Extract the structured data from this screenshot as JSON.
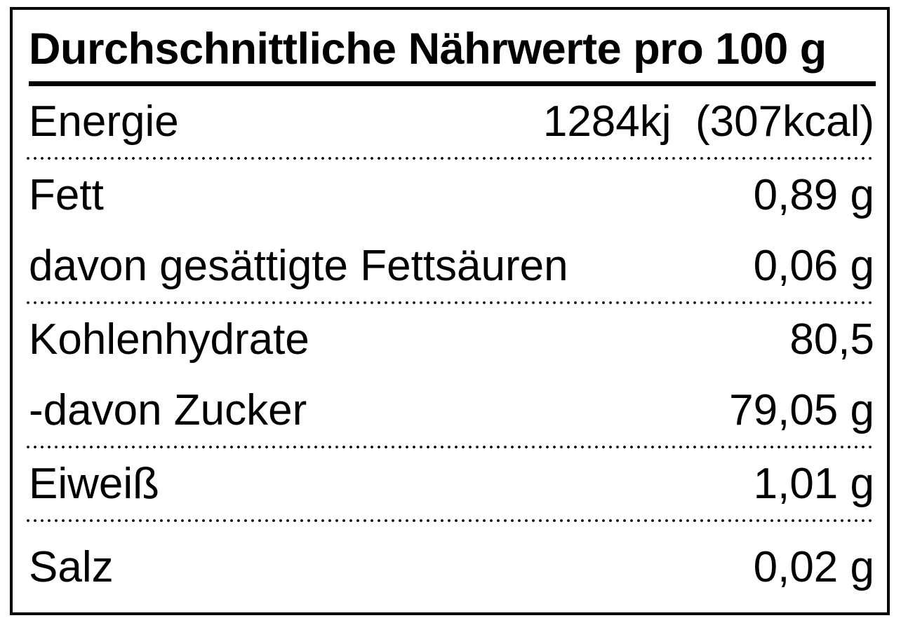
{
  "nutrition_label": {
    "title": "Durchschnittliche Nährwerte pro 100 g",
    "rows": [
      {
        "label": "Energie",
        "value": "1284kj  (307kcal)"
      },
      {
        "label": "Fett",
        "value": "0,89 g"
      },
      {
        "label": "davon gesättigte Fettsäuren",
        "value": "0,06 g"
      },
      {
        "label": "Kohlenhydrate",
        "value": "80,5"
      },
      {
        "label": "-davon Zucker",
        "value": "79,05 g"
      },
      {
        "label": "Eiweiß",
        "value": "1,01 g"
      },
      {
        "label": "Salz",
        "value": "0,02 g"
      }
    ],
    "colors": {
      "text": "#000000",
      "background": "#ffffff",
      "border": "#000000"
    }
  }
}
